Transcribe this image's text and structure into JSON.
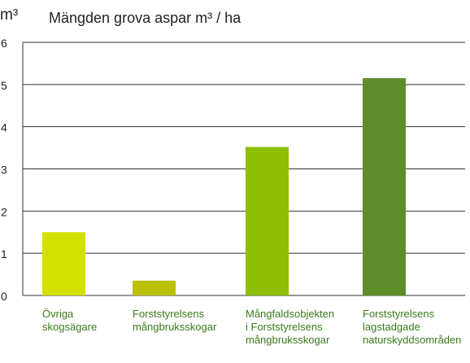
{
  "chart_data": {
    "type": "bar",
    "title": "Mängden grova aspar m³ / ha",
    "ylabel": "m³",
    "ylim": [
      0,
      6
    ],
    "yticks": [
      0,
      1,
      2,
      3,
      4,
      5,
      6
    ],
    "grid": true,
    "categories": [
      "Övriga\nskogsägare",
      "Forststyrelsens\nmångbruksskogar",
      "Mångfaldsobjekten\ni Forststyrelsens\nmångbruksskogar",
      "Forststyrelsens\nlagstadgade\nnaturskyddsområden"
    ],
    "values": [
      1.5,
      0.35,
      3.52,
      5.15
    ],
    "colors": [
      "#d4e000",
      "#b9c000",
      "#8cc000",
      "#5e8c2a"
    ]
  }
}
